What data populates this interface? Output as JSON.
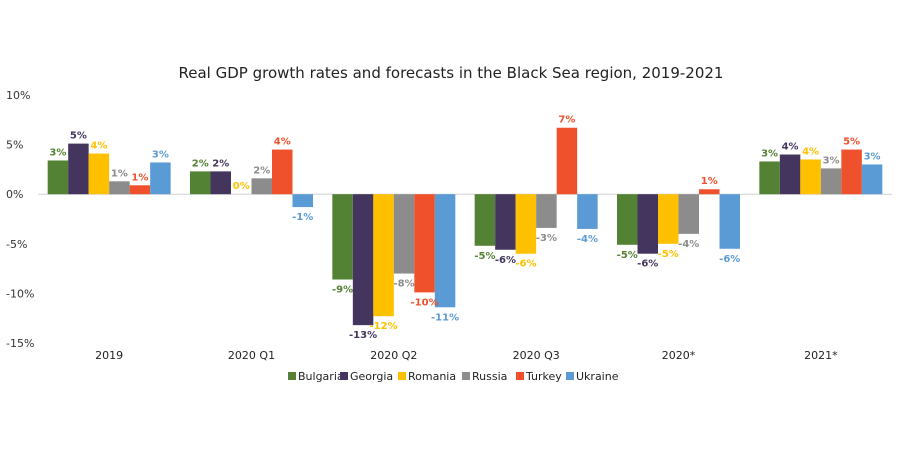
{
  "chart_data": {
    "type": "bar",
    "title": "Real GDP growth rates and forecasts in the Black Sea region, 2019-2021",
    "categories": [
      "2019",
      "2020 Q1",
      "2020 Q2",
      "2020 Q3",
      "2020*",
      "2021*"
    ],
    "ylim": [
      -15,
      10
    ],
    "yticks": [
      "10%",
      "5%",
      "0%",
      "-5%",
      "-10%",
      "-15%"
    ],
    "ytick_values": [
      10,
      5,
      0,
      -5,
      -10,
      -15
    ],
    "legend_position": "bottom",
    "series": [
      {
        "name": "Bulgaria",
        "color": "#548235",
        "values": [
          3.4,
          2.3,
          -8.6,
          -5.2,
          -5.1,
          3.3
        ],
        "labels": [
          "3%",
          "2%",
          "-9%",
          "-5%",
          "-5%",
          "3%"
        ]
      },
      {
        "name": "Georgia",
        "color": "#44355e",
        "values": [
          5.1,
          2.3,
          -13.2,
          -5.6,
          -6.0,
          4.0
        ],
        "labels": [
          "5%",
          "2%",
          "-13%",
          "-6%",
          "-6%",
          "4%"
        ]
      },
      {
        "name": "Romania",
        "color": "#ffc000",
        "values": [
          4.1,
          0.0,
          -12.3,
          -6.0,
          -5.0,
          3.5
        ],
        "labels": [
          "4%",
          "0%",
          "-12%",
          "-6%",
          "-5%",
          "4%"
        ]
      },
      {
        "name": "Russia",
        "color": "#8c8c8c",
        "values": [
          1.3,
          1.6,
          -8.0,
          -3.4,
          -4.0,
          2.6
        ],
        "labels": [
          "1%",
          "2%",
          "-8%",
          "-3%",
          "-4%",
          "3%"
        ]
      },
      {
        "name": "Turkey",
        "color": "#f0512d",
        "values": [
          0.9,
          4.5,
          -9.9,
          6.7,
          0.5,
          4.5
        ],
        "labels": [
          "1%",
          "4%",
          "-10%",
          "7%",
          "1%",
          "5%"
        ]
      },
      {
        "name": "Ukraine",
        "color": "#5b9bd5",
        "values": [
          3.2,
          -1.3,
          -11.4,
          -3.5,
          -5.5,
          3.0
        ],
        "labels": [
          "3%",
          "-1%",
          "-11%",
          "-4%",
          "-6%",
          "3%"
        ]
      }
    ]
  }
}
